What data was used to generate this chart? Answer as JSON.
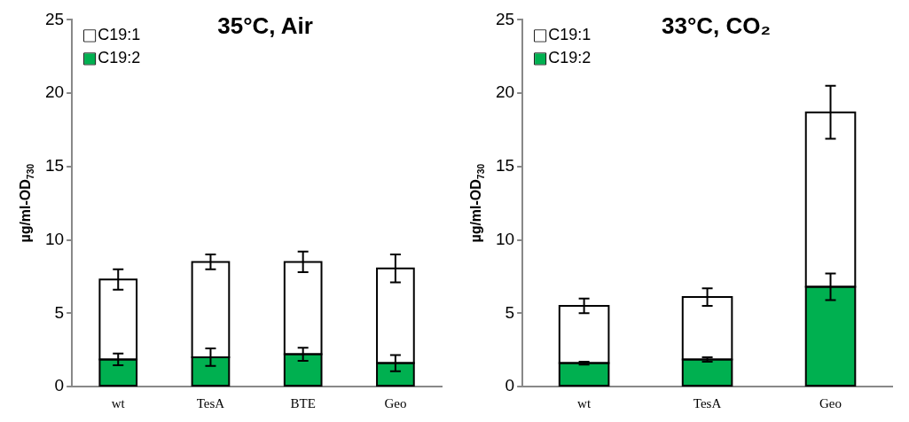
{
  "chart_data": [
    {
      "type": "bar",
      "title": "35°C, Air",
      "ylabel": "µg/ml-OD$_{730}$",
      "categories": [
        "wt",
        "TesA",
        "BTE",
        "Geo"
      ],
      "stacked": true,
      "legend": "top left",
      "grid": false,
      "ylim": [
        0,
        25
      ],
      "yticks": [
        0,
        5,
        10,
        15,
        20,
        25
      ],
      "series": [
        {
          "name": "C19:2",
          "color": "#00b050",
          "values": [
            1.85,
            2.0,
            2.2,
            1.6
          ],
          "errors": [
            0.4,
            0.6,
            0.45,
            0.55
          ]
        },
        {
          "name": "C19:1",
          "color": "#ffffff",
          "values": [
            5.45,
            6.5,
            6.3,
            6.45
          ],
          "errors": [
            0.7,
            0.5,
            0.7,
            0.95
          ]
        }
      ]
    },
    {
      "type": "bar",
      "title": "33°C, CO₂",
      "ylabel": "µg/ml-OD$_{730}$",
      "categories": [
        "wt",
        "TesA",
        "Geo"
      ],
      "stacked": true,
      "legend": "top left",
      "grid": false,
      "ylim": [
        0,
        25
      ],
      "yticks": [
        0,
        5,
        10,
        15,
        20,
        25
      ],
      "series": [
        {
          "name": "C19:2",
          "color": "#00b050",
          "values": [
            1.6,
            1.85,
            6.8
          ],
          "errors": [
            0.1,
            0.15,
            0.9
          ]
        },
        {
          "name": "C19:1",
          "color": "#ffffff",
          "values": [
            3.9,
            4.25,
            11.9
          ],
          "errors": [
            0.5,
            0.6,
            1.8
          ]
        }
      ]
    }
  ]
}
